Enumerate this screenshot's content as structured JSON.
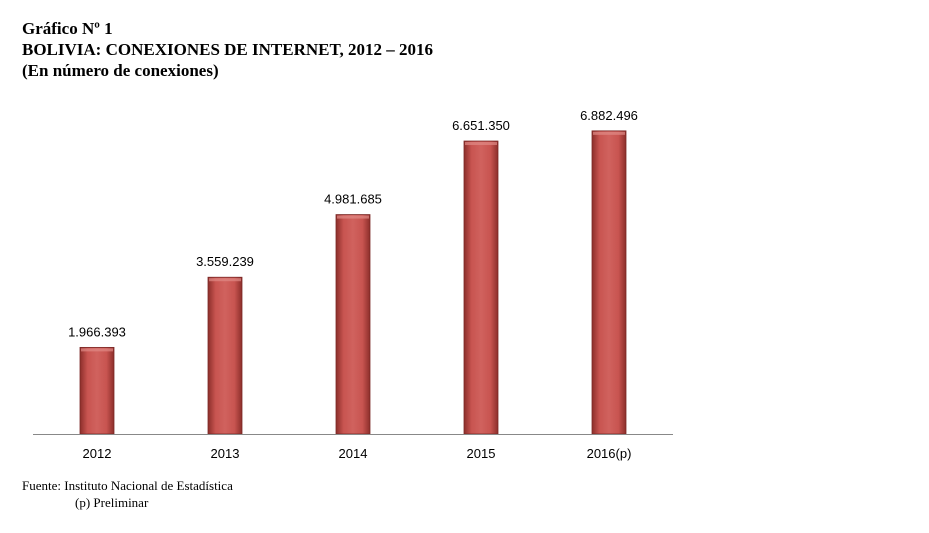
{
  "header": {
    "label": "Gráfico Nº 1",
    "title": "BOLIVIA: CONEXIONES DE INTERNET, 2012 – 2016",
    "subtitle": "(En número de conexiones)"
  },
  "chart_data": {
    "type": "bar",
    "categories": [
      "2012",
      "2013",
      "2014",
      "2015",
      "2016(p)"
    ],
    "values": [
      1966393,
      3559239,
      4981685,
      6651350,
      6882496
    ],
    "data_labels": [
      "1.966.393",
      "3.559.239",
      "4.981.685",
      "6.651.350",
      "6.882.496"
    ],
    "ylim": [
      0,
      7810000
    ],
    "grid": false,
    "legend": "none",
    "bar_color": "#c0504d"
  },
  "footer": {
    "source": "Fuente: Instituto Nacional de Estadística",
    "note": "(p) Preliminar"
  }
}
